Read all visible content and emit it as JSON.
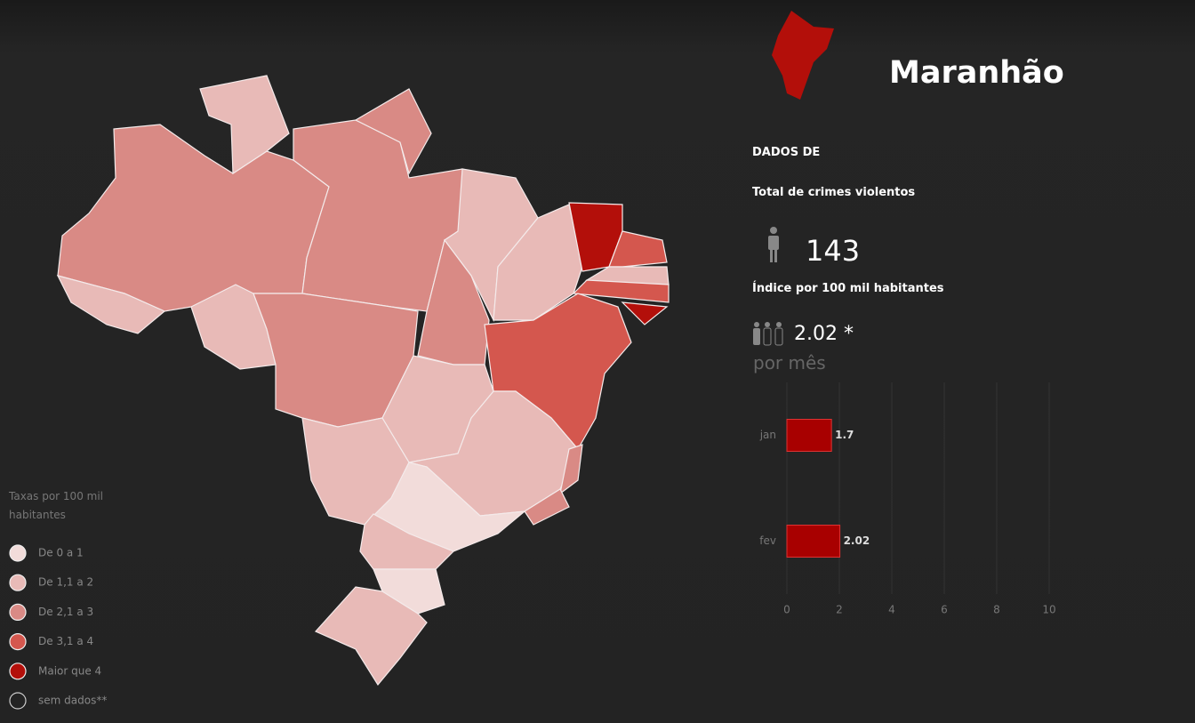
{
  "header": {
    "title": "Maranhão"
  },
  "stats": {
    "section": "DADOS DE",
    "total_label": "Total de crimes violentos",
    "total": 143,
    "index_label": "Índice por 100 mil habitantes",
    "index": "2.02 *",
    "period": "por mês"
  },
  "legend": {
    "title": "Taxas por 100 mil habitantes",
    "items": [
      {
        "label": "De 0 a 1",
        "color": "#f2dcda"
      },
      {
        "label": "De 1,1 a 2",
        "color": "#e8bab7"
      },
      {
        "label": "De 2,1 a 3",
        "color": "#d98a85"
      },
      {
        "label": "De 3,1 a 4",
        "color": "#d4574e"
      },
      {
        "label": "Maior que 4",
        "color": "#b30f0a"
      },
      {
        "label": "sem dados**",
        "color": "none"
      }
    ]
  },
  "chart_data": {
    "type": "bar",
    "orientation": "horizontal",
    "categories": [
      "jan",
      "fev"
    ],
    "values": [
      1.7,
      2.02
    ],
    "color": "#a80000",
    "xlim": [
      0,
      10
    ],
    "xticks": [
      0,
      2,
      4,
      6,
      8,
      10
    ],
    "grid": true
  }
}
